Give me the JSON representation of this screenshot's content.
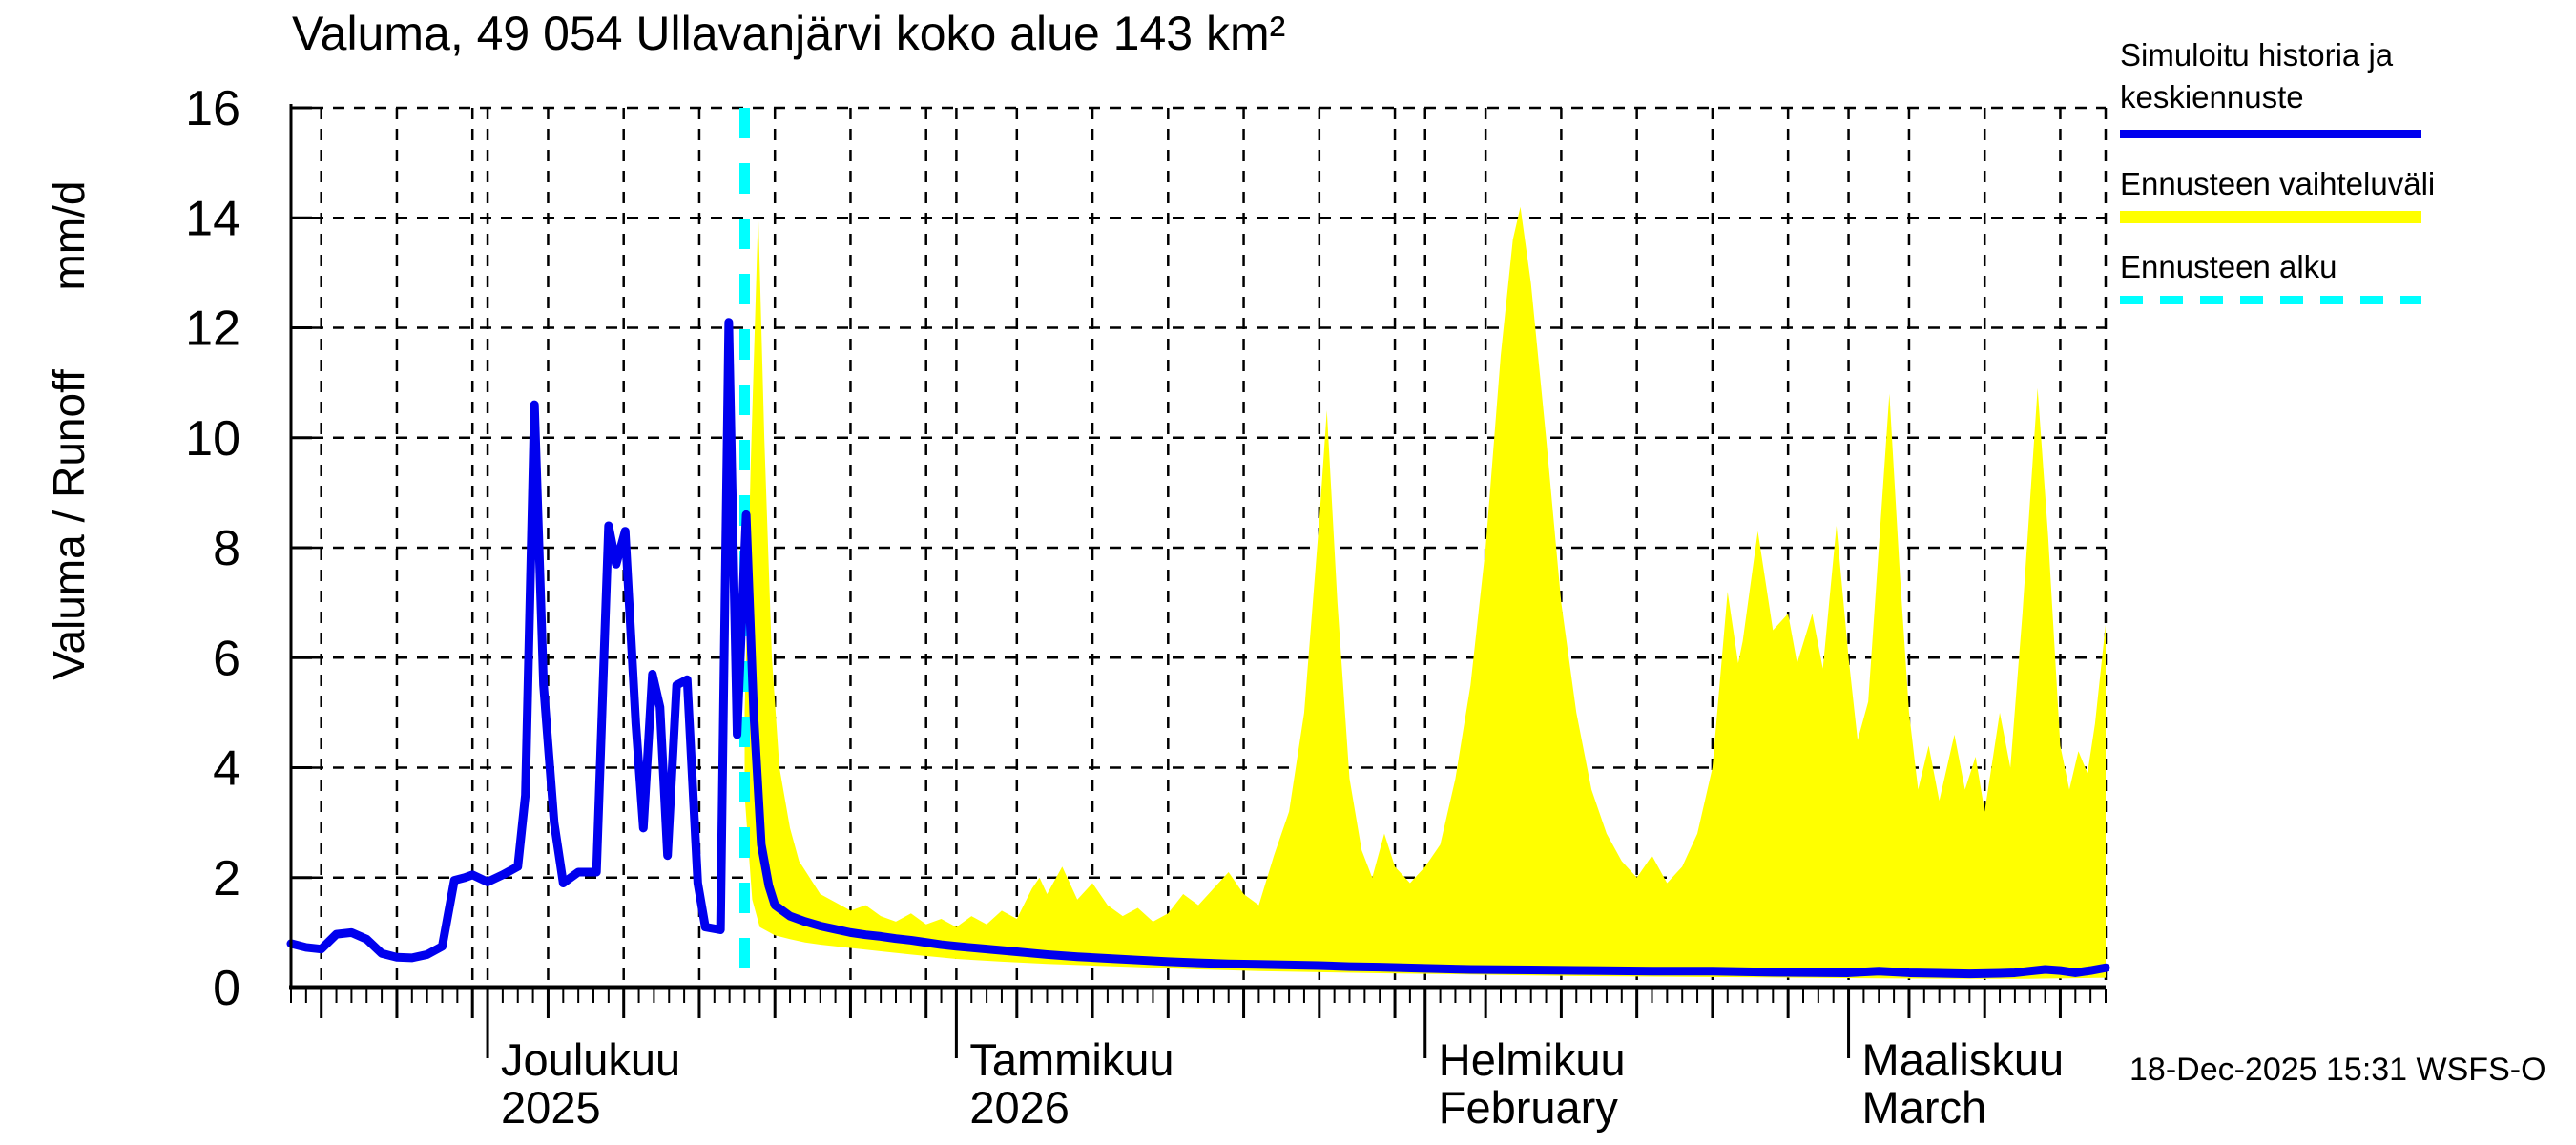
{
  "title": "Valuma, 49 054 Ullavanjärvi koko alue 143 km²",
  "y_axis": {
    "label": "Valuma / Runoff",
    "unit": "mm/d",
    "min": 0,
    "max": 16,
    "tick_step": 2,
    "tick_values": [
      0,
      2,
      4,
      6,
      8,
      10,
      12,
      14,
      16
    ]
  },
  "x_axis": {
    "t_min": 0,
    "t_max": 120,
    "t_unit": "days since 2025-11-18 (plot left edge)",
    "left_edge_day_of_month": 18,
    "month_start_ts": [
      13,
      44,
      75,
      103
    ],
    "months": [
      {
        "label": "Joulukuu",
        "subline": "2025",
        "t": 13
      },
      {
        "label": "Tammikuu",
        "subline": "2026",
        "t": 44
      },
      {
        "label": "Helmikuu",
        "subline": "February",
        "t": 75
      },
      {
        "label": "Maaliskuu",
        "subline": "March",
        "t": 103
      }
    ]
  },
  "legend": {
    "history": {
      "line1": "Simuloitu historia ja",
      "line2": "keskiennuste",
      "color": "#0000EE"
    },
    "range": {
      "line1": "Ennusteen vaihteluväli",
      "color": "#FFFF00"
    },
    "start": {
      "line1": "Ennusteen alku",
      "color": "#00FFFF"
    }
  },
  "footer": {
    "generated": "18-Dec-2025 15:31 WSFS-O"
  },
  "colors": {
    "history_line": "#0000EE",
    "range_band": "#FFFF00",
    "forecast_start": "#00FFFF",
    "axis": "#000000",
    "background": "#FFFFFF"
  },
  "chart_data": {
    "type": "line",
    "title": "Valuma, 49 054 Ullavanjärvi koko alue 143 km²",
    "xlabel": "",
    "ylabel": "Valuma / Runoff mm/d",
    "ylim": [
      0,
      16
    ],
    "grid": "dashed, at 2 mm/d intervals and at day-of-month 1,5,10,15,20,25,30",
    "legend_position": "top-right outside plot",
    "forecast_start_t": 30,
    "series": [
      {
        "name": "Simuloitu historia ja keskiennuste",
        "kind": "line",
        "color": "#0000EE",
        "history_points": [
          [
            0,
            0.8
          ],
          [
            1,
            0.73
          ],
          [
            2,
            0.7
          ],
          [
            3,
            0.97
          ],
          [
            4,
            1.0
          ],
          [
            5,
            0.88
          ],
          [
            6,
            0.62
          ],
          [
            7,
            0.55
          ],
          [
            8,
            0.54
          ],
          [
            9,
            0.6
          ],
          [
            10,
            0.75
          ],
          [
            10.8,
            1.95
          ],
          [
            11.5,
            2.0
          ],
          [
            12,
            2.05
          ],
          [
            13,
            1.92
          ],
          [
            14,
            2.05
          ],
          [
            15,
            2.2
          ],
          [
            15.5,
            3.5
          ],
          [
            16.1,
            10.6
          ],
          [
            16.7,
            5.5
          ],
          [
            17.4,
            3.0
          ],
          [
            18,
            1.9
          ],
          [
            19,
            2.1
          ],
          [
            20.2,
            2.1
          ],
          [
            21,
            8.4
          ],
          [
            21.5,
            7.7
          ],
          [
            22.1,
            8.3
          ],
          [
            22.8,
            4.8
          ],
          [
            23.3,
            2.9
          ],
          [
            23.9,
            5.7
          ],
          [
            24.4,
            5.1
          ],
          [
            24.9,
            2.4
          ],
          [
            25.5,
            5.5
          ],
          [
            26.2,
            5.6
          ],
          [
            26.9,
            1.9
          ],
          [
            27.4,
            1.1
          ],
          [
            28.4,
            1.05
          ],
          [
            28.95,
            12.1
          ],
          [
            29.5,
            4.6
          ],
          [
            30.1,
            8.6
          ]
        ],
        "forecast_points": [
          [
            30.6,
            5.0
          ],
          [
            31.1,
            2.6
          ],
          [
            31.6,
            1.85
          ],
          [
            32,
            1.5
          ],
          [
            33,
            1.3
          ],
          [
            34,
            1.2
          ],
          [
            35,
            1.12
          ],
          [
            36,
            1.06
          ],
          [
            37,
            1.0
          ],
          [
            38,
            0.96
          ],
          [
            39,
            0.93
          ],
          [
            40,
            0.89
          ],
          [
            41,
            0.86
          ],
          [
            42,
            0.82
          ],
          [
            43,
            0.78
          ],
          [
            44,
            0.75
          ],
          [
            46,
            0.7
          ],
          [
            48,
            0.65
          ],
          [
            50,
            0.6
          ],
          [
            52,
            0.56
          ],
          [
            54,
            0.53
          ],
          [
            56,
            0.5
          ],
          [
            58,
            0.47
          ],
          [
            60,
            0.45
          ],
          [
            62,
            0.43
          ],
          [
            64,
            0.42
          ],
          [
            66,
            0.41
          ],
          [
            68,
            0.4
          ],
          [
            70,
            0.38
          ],
          [
            72,
            0.37
          ],
          [
            75,
            0.35
          ],
          [
            78,
            0.33
          ],
          [
            82,
            0.32
          ],
          [
            86,
            0.31
          ],
          [
            90,
            0.3
          ],
          [
            94,
            0.3
          ],
          [
            98,
            0.28
          ],
          [
            103,
            0.27
          ],
          [
            105,
            0.3
          ],
          [
            107,
            0.27
          ],
          [
            109,
            0.26
          ],
          [
            111,
            0.25
          ],
          [
            113,
            0.26
          ],
          [
            114,
            0.27
          ],
          [
            115,
            0.3
          ],
          [
            116,
            0.33
          ],
          [
            117,
            0.31
          ],
          [
            118,
            0.27
          ],
          [
            119,
            0.31
          ],
          [
            120,
            0.36
          ]
        ]
      },
      {
        "name": "Ennusteen vaihteluväli",
        "kind": "band",
        "color": "#FFFF00",
        "top": [
          [
            30,
            5.0
          ],
          [
            30.4,
            9.5
          ],
          [
            30.9,
            14.1
          ],
          [
            31.3,
            10.0
          ],
          [
            31.8,
            6.0
          ],
          [
            32.3,
            4.0
          ],
          [
            33,
            2.9
          ],
          [
            33.6,
            2.3
          ],
          [
            34.3,
            2.0
          ],
          [
            35,
            1.7
          ],
          [
            36,
            1.55
          ],
          [
            37,
            1.4
          ],
          [
            38,
            1.5
          ],
          [
            39,
            1.3
          ],
          [
            40,
            1.2
          ],
          [
            41,
            1.35
          ],
          [
            42,
            1.15
          ],
          [
            43,
            1.25
          ],
          [
            44,
            1.1
          ],
          [
            45,
            1.3
          ],
          [
            46,
            1.15
          ],
          [
            47,
            1.4
          ],
          [
            48,
            1.25
          ],
          [
            49,
            1.8
          ],
          [
            49.5,
            2.0
          ],
          [
            50,
            1.7
          ],
          [
            51,
            2.2
          ],
          [
            52,
            1.6
          ],
          [
            53,
            1.9
          ],
          [
            54,
            1.5
          ],
          [
            55,
            1.3
          ],
          [
            56,
            1.45
          ],
          [
            57,
            1.2
          ],
          [
            58,
            1.35
          ],
          [
            59,
            1.7
          ],
          [
            60,
            1.5
          ],
          [
            61,
            1.8
          ],
          [
            62,
            2.1
          ],
          [
            63,
            1.7
          ],
          [
            64,
            1.5
          ],
          [
            65,
            2.4
          ],
          [
            66,
            3.2
          ],
          [
            67,
            5.0
          ],
          [
            68,
            8.5
          ],
          [
            68.5,
            10.5
          ],
          [
            69.2,
            7.0
          ],
          [
            70,
            3.8
          ],
          [
            70.8,
            2.5
          ],
          [
            71.5,
            2.0
          ],
          [
            72.3,
            2.8
          ],
          [
            73,
            2.2
          ],
          [
            74,
            1.9
          ],
          [
            75,
            2.2
          ],
          [
            76,
            2.6
          ],
          [
            77,
            3.8
          ],
          [
            78,
            5.5
          ],
          [
            79,
            8.0
          ],
          [
            80,
            11.5
          ],
          [
            80.8,
            13.6
          ],
          [
            81.3,
            14.2
          ],
          [
            82,
            12.8
          ],
          [
            83,
            10.0
          ],
          [
            84,
            7.0
          ],
          [
            85,
            5.0
          ],
          [
            86,
            3.6
          ],
          [
            87,
            2.8
          ],
          [
            88,
            2.3
          ],
          [
            89,
            2.0
          ],
          [
            90,
            2.4
          ],
          [
            91,
            1.9
          ],
          [
            92,
            2.2
          ],
          [
            93,
            2.8
          ],
          [
            94,
            4.0
          ],
          [
            95,
            7.2
          ],
          [
            95.7,
            5.9
          ],
          [
            96,
            6.3
          ],
          [
            97,
            8.3
          ],
          [
            98,
            6.5
          ],
          [
            99,
            6.8
          ],
          [
            99.6,
            5.9
          ],
          [
            100.6,
            6.8
          ],
          [
            101.3,
            5.8
          ],
          [
            102.2,
            8.4
          ],
          [
            103,
            6.0
          ],
          [
            103.6,
            4.5
          ],
          [
            104.3,
            5.2
          ],
          [
            105,
            8.0
          ],
          [
            105.7,
            10.8
          ],
          [
            106.4,
            7.5
          ],
          [
            107,
            5.0
          ],
          [
            107.6,
            3.6
          ],
          [
            108.3,
            4.4
          ],
          [
            109,
            3.4
          ],
          [
            110,
            4.6
          ],
          [
            110.7,
            3.6
          ],
          [
            111.4,
            4.2
          ],
          [
            112,
            3.2
          ],
          [
            113,
            5.0
          ],
          [
            113.7,
            4.0
          ],
          [
            114.5,
            6.8
          ],
          [
            115.5,
            10.9
          ],
          [
            116.2,
            8.2
          ],
          [
            117,
            4.4
          ],
          [
            117.6,
            3.6
          ],
          [
            118.2,
            4.3
          ],
          [
            118.8,
            3.9
          ],
          [
            119.3,
            4.8
          ],
          [
            120,
            6.6
          ]
        ],
        "bottom": [
          [
            30,
            3.5
          ],
          [
            30.5,
            1.6
          ],
          [
            31,
            1.1
          ],
          [
            32,
            0.95
          ],
          [
            33,
            0.88
          ],
          [
            34,
            0.82
          ],
          [
            35,
            0.78
          ],
          [
            37,
            0.72
          ],
          [
            39,
            0.66
          ],
          [
            41,
            0.6
          ],
          [
            44,
            0.52
          ],
          [
            47,
            0.47
          ],
          [
            50,
            0.43
          ],
          [
            53,
            0.4
          ],
          [
            56,
            0.37
          ],
          [
            60,
            0.33
          ],
          [
            64,
            0.3
          ],
          [
            68,
            0.28
          ],
          [
            72,
            0.26
          ],
          [
            75,
            0.25
          ],
          [
            80,
            0.23
          ],
          [
            85,
            0.21
          ],
          [
            90,
            0.2
          ],
          [
            95,
            0.19
          ],
          [
            100,
            0.18
          ],
          [
            105,
            0.17
          ],
          [
            110,
            0.16
          ],
          [
            115,
            0.16
          ],
          [
            120,
            0.18
          ]
        ]
      },
      {
        "name": "Ennusteen alku",
        "kind": "vline",
        "color": "#00FFFF",
        "t": 30
      }
    ]
  }
}
